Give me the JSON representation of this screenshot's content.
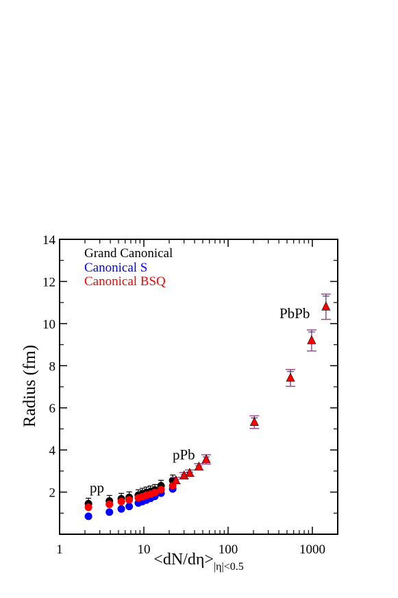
{
  "chart_data": {
    "type": "scatter",
    "title": "",
    "xlabel": "<dN/dη>",
    "xlabel_subscript": "|η|<0.5",
    "ylabel": "Radius (fm)",
    "xscale": "log",
    "xlim": [
      1,
      2000
    ],
    "ylim": [
      0,
      14
    ],
    "x_ticks": [
      1,
      10,
      100,
      1000
    ],
    "x_tick_labels": [
      "1",
      "10",
      "100",
      "1000"
    ],
    "y_ticks": [
      2,
      4,
      6,
      8,
      10,
      12,
      14
    ],
    "y_tick_labels": [
      "2",
      "4",
      "6",
      "8",
      "10",
      "12",
      "14"
    ],
    "grid": false,
    "legend_position": "top-left",
    "annotations": [
      {
        "text": "pp",
        "x": 2.3,
        "y": 2.2
      },
      {
        "text": "pPb",
        "x": 30,
        "y": 3.8
      },
      {
        "text": "PbPb",
        "x": 620,
        "y": 10.0
      }
    ],
    "colors": {
      "grand_canonical": "#000000",
      "canonical_s": "#0000ff",
      "canonical_bsq": "#ff0000",
      "errorbar_purple": "#9d4a8a"
    },
    "series": [
      {
        "name": "Grand Canonical",
        "color": "#000000",
        "marker": "circle",
        "points": [
          {
            "x": 2.2,
            "y": 1.45
          },
          {
            "x": 3.9,
            "y": 1.58
          },
          {
            "x": 5.4,
            "y": 1.68
          },
          {
            "x": 6.7,
            "y": 1.75
          },
          {
            "x": 8.6,
            "y": 1.85
          },
          {
            "x": 9.6,
            "y": 1.92
          },
          {
            "x": 10.7,
            "y": 1.98
          },
          {
            "x": 12.0,
            "y": 2.03
          },
          {
            "x": 13.5,
            "y": 2.1
          },
          {
            "x": 16.0,
            "y": 2.3
          },
          {
            "x": 22.0,
            "y": 2.55
          }
        ]
      },
      {
        "name": "Canonical S",
        "color": "#0000ff",
        "marker": "circle",
        "points": [
          {
            "x": 2.2,
            "y": 0.85
          },
          {
            "x": 3.9,
            "y": 1.05
          },
          {
            "x": 5.4,
            "y": 1.2
          },
          {
            "x": 6.7,
            "y": 1.32
          },
          {
            "x": 8.6,
            "y": 1.48
          },
          {
            "x": 9.6,
            "y": 1.55
          },
          {
            "x": 10.7,
            "y": 1.62
          },
          {
            "x": 12.0,
            "y": 1.7
          },
          {
            "x": 13.5,
            "y": 1.8
          },
          {
            "x": 16.0,
            "y": 1.95
          },
          {
            "x": 22.0,
            "y": 2.15
          }
        ]
      },
      {
        "name": "Canonical BSQ",
        "color": "#ff0000",
        "marker": "circle",
        "points": [
          {
            "x": 2.2,
            "y": 1.28
          },
          {
            "x": 3.9,
            "y": 1.42
          },
          {
            "x": 5.4,
            "y": 1.55
          },
          {
            "x": 6.7,
            "y": 1.63
          },
          {
            "x": 8.6,
            "y": 1.72
          },
          {
            "x": 9.6,
            "y": 1.78
          },
          {
            "x": 10.7,
            "y": 1.85
          },
          {
            "x": 12.0,
            "y": 1.9
          },
          {
            "x": 13.5,
            "y": 1.98
          },
          {
            "x": 16.0,
            "y": 2.12
          },
          {
            "x": 22.0,
            "y": 2.3
          }
        ]
      },
      {
        "name": "",
        "color": "#ff0000",
        "marker": "triangle",
        "points": [
          {
            "x": 24.0,
            "y": 2.55,
            "err": 0.15
          },
          {
            "x": 30.0,
            "y": 2.78,
            "err": 0.15
          },
          {
            "x": 35.0,
            "y": 2.9,
            "err": 0.15
          },
          {
            "x": 45.0,
            "y": 3.2,
            "err": 0.15
          },
          {
            "x": 55.0,
            "y": 3.55,
            "err": 0.22
          },
          {
            "x": 205.0,
            "y": 5.32,
            "err": 0.3
          },
          {
            "x": 550.0,
            "y": 7.42,
            "err": 0.4
          },
          {
            "x": 980.0,
            "y": 9.2,
            "err": 0.5
          },
          {
            "x": 1450.0,
            "y": 10.8,
            "err": 0.6
          }
        ]
      }
    ]
  }
}
